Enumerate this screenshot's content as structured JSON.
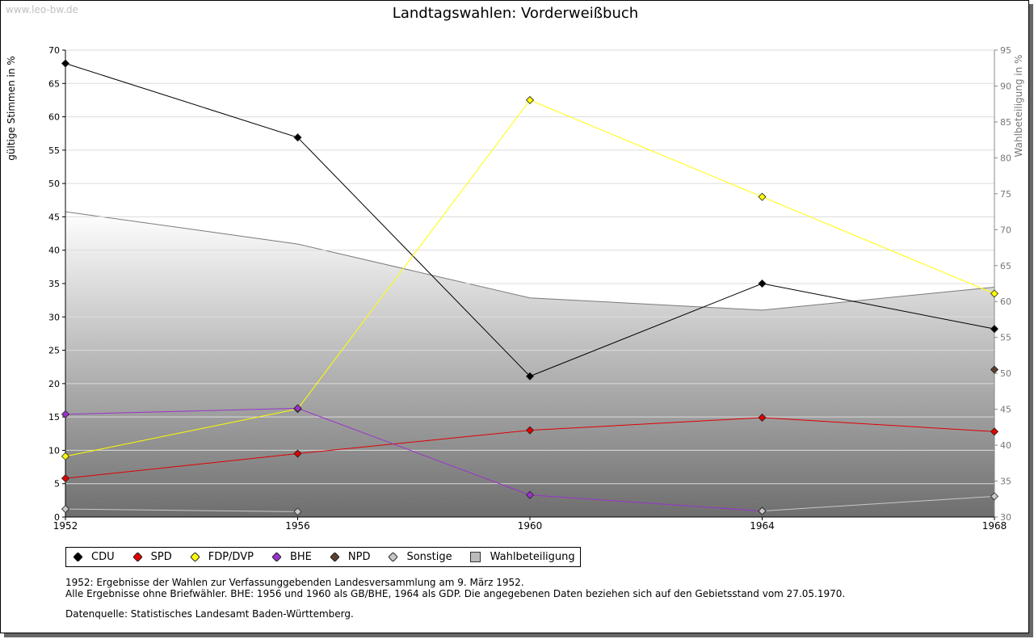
{
  "watermark": "www.leo-bw.de",
  "chart_data": {
    "type": "line",
    "title": "Landtagswahlen: Vorderweißbuch",
    "ylabel": "gültige Stimmen in %",
    "y2label": "Wahlbeteiligung in %",
    "x": [
      "1952",
      "1956",
      "1960",
      "1964",
      "1968"
    ],
    "ylim": [
      0,
      70
    ],
    "y2lim": [
      30,
      95
    ],
    "yticks": [
      0,
      5,
      10,
      15,
      20,
      25,
      30,
      35,
      40,
      45,
      50,
      55,
      60,
      65,
      70
    ],
    "y2ticks": [
      30,
      35,
      40,
      45,
      50,
      55,
      60,
      65,
      70,
      75,
      80,
      85,
      90,
      95
    ],
    "grid": true,
    "series": [
      {
        "name": "CDU",
        "color": "#000000",
        "values": [
          68.0,
          56.9,
          21.1,
          35.0,
          28.2
        ]
      },
      {
        "name": "SPD",
        "color": "#e00000",
        "values": [
          5.8,
          9.5,
          13.0,
          14.9,
          12.8
        ]
      },
      {
        "name": "FDP/DVP",
        "color": "#ffff00",
        "values": [
          9.1,
          16.2,
          62.5,
          48.0,
          33.5
        ]
      },
      {
        "name": "BHE",
        "color": "#9933cc",
        "values": [
          15.4,
          16.3,
          3.3,
          0.9,
          null
        ]
      },
      {
        "name": "NPD",
        "color": "#5a4030",
        "values": [
          null,
          null,
          null,
          null,
          22.1
        ]
      },
      {
        "name": "Sonstige",
        "color": "#c8c8c8",
        "values": [
          1.2,
          0.8,
          null,
          0.9,
          3.1
        ]
      }
    ],
    "turnout": {
      "name": "Wahlbeteiligung",
      "axis": "right",
      "values": [
        72.5,
        68.0,
        60.5,
        58.8,
        62.0
      ]
    }
  },
  "notes": [
    "1952: Ergebnisse der Wahlen zur Verfassunggebenden Landesversammlung am 9. März 1952.",
    "Alle Ergebnisse ohne Briefwähler. BHE: 1956 und 1960 als GB/BHE, 1964 als GDP. Die angegebenen Daten beziehen sich auf den Gebietsstand vom 27.05.1970."
  ],
  "source": "Datenquelle: Statistisches Landesamt Baden-Württemberg."
}
